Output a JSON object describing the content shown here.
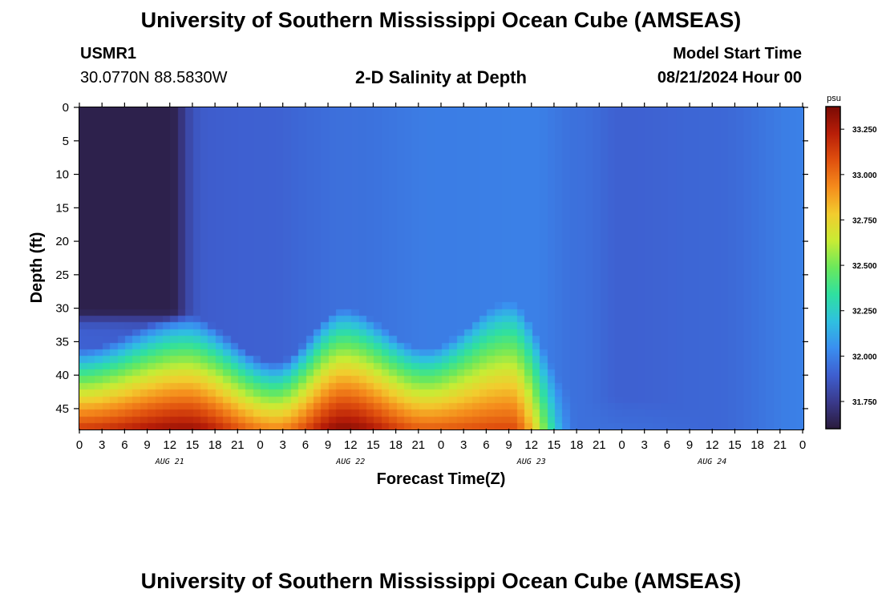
{
  "header": {
    "title": "University of Southern Mississippi Ocean Cube (AMSEAS)",
    "station_id": "USMR1",
    "station_coords": "30.0770N  88.5830W",
    "model_start_label": "Model Start Time",
    "model_start_value": "08/21/2024 Hour 00"
  },
  "footer": {
    "title": "University of Southern Mississippi Ocean Cube (AMSEAS)"
  },
  "chart_data": {
    "type": "heatmap",
    "title": "2-D Salinity at Depth",
    "xlabel": "Forecast Time(Z)",
    "ylabel": "Depth (ft)",
    "x_range_hours": [
      0,
      96
    ],
    "ylim": [
      48,
      0
    ],
    "x_tick_hours": [
      0,
      3,
      6,
      9,
      12,
      15,
      18,
      21,
      24,
      27,
      30,
      33,
      36,
      39,
      42,
      45,
      48,
      51,
      54,
      57,
      60,
      63,
      66,
      69,
      72,
      75,
      78,
      81,
      84,
      87,
      90,
      93,
      96
    ],
    "x_tick_labels": [
      "0",
      "3",
      "6",
      "9",
      "12",
      "15",
      "18",
      "21",
      "0",
      "3",
      "6",
      "9",
      "12",
      "15",
      "18",
      "21",
      "0",
      "3",
      "6",
      "9",
      "12",
      "15",
      "18",
      "21",
      "0",
      "3",
      "6",
      "9",
      "12",
      "15",
      "18",
      "21",
      "0"
    ],
    "day_labels": [
      {
        "hour": 12,
        "label": "AUG 21"
      },
      {
        "hour": 36,
        "label": "AUG 22"
      },
      {
        "hour": 60,
        "label": "AUG 23"
      },
      {
        "hour": 84,
        "label": "AUG 24"
      }
    ],
    "y_ticks": [
      0,
      5,
      10,
      15,
      20,
      25,
      30,
      35,
      40,
      45
    ],
    "y_tick_labels": [
      "0",
      "5",
      "10",
      "15",
      "20",
      "25",
      "30",
      "35",
      "40",
      "45"
    ],
    "colorbar": {
      "unit": "psu",
      "range": [
        31.6,
        33.37
      ],
      "ticks": [
        31.75,
        32.0,
        32.25,
        32.5,
        32.75,
        33.0,
        33.25
      ],
      "tick_labels": [
        "31.750",
        "32.000",
        "32.250",
        "32.500",
        "32.750",
        "33.000",
        "33.250"
      ],
      "colors": [
        "#2a1b3c",
        "#3a3a8c",
        "#3e5fd0",
        "#3a8ef0",
        "#2fc0e0",
        "#2fe0a0",
        "#6ae85c",
        "#c8ec34",
        "#f2cc2e",
        "#f58c1c",
        "#e0500e",
        "#b81e08",
        "#7a0a04"
      ]
    },
    "surface_features": {
      "low_salinity_pool": {
        "hour_range": [
          0,
          12
        ],
        "depth_range_ft": [
          0,
          30
        ],
        "salinity": 31.63
      },
      "background_salinity_by_hour": [
        [
          0,
          31.9
        ],
        [
          12,
          31.88
        ],
        [
          24,
          31.9
        ],
        [
          36,
          31.95
        ],
        [
          48,
          31.99
        ],
        [
          60,
          32.0
        ],
        [
          66,
          31.95
        ],
        [
          72,
          31.9
        ],
        [
          84,
          31.92
        ],
        [
          96,
          32.0
        ]
      ]
    },
    "bottom_layer_peaks": [
      {
        "hour": 14,
        "top_depth_ft": 37,
        "max_salinity": 33.3
      },
      {
        "hour": 35,
        "top_depth_ft": 36,
        "max_salinity": 33.33
      },
      {
        "hour": 57,
        "top_depth_ft": 35,
        "max_salinity": 33.1
      }
    ],
    "bottom_layer_troughs": [
      {
        "hour": 26,
        "top_depth_ft": 44,
        "max_salinity": 32.95
      },
      {
        "hour": 46,
        "top_depth_ft": 42,
        "max_salinity": 33.05
      }
    ],
    "bottom_layer_fades_by_hour": 66
  }
}
